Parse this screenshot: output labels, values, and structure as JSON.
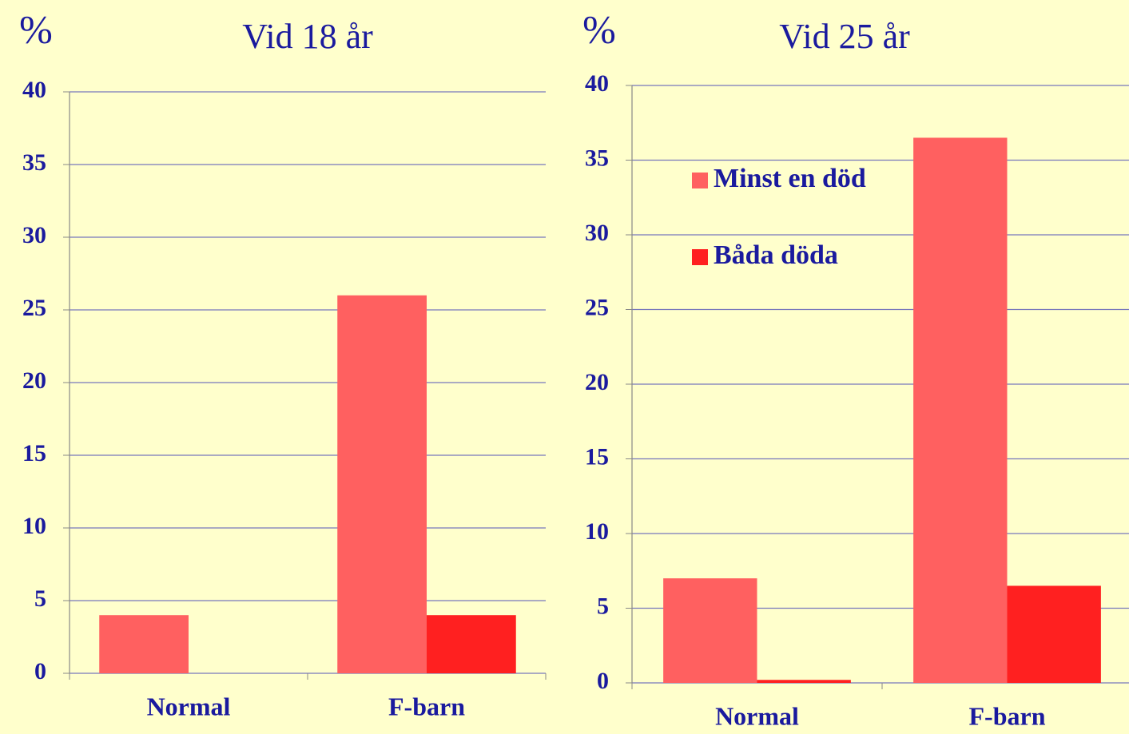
{
  "chart_data": [
    {
      "type": "bar",
      "title": "Vid 18 år",
      "y_label": "%",
      "categories": [
        "Normal",
        "F-barn"
      ],
      "series": [
        {
          "color": "#ff6060",
          "values": [
            4,
            26
          ]
        },
        {
          "color": "#ff2020",
          "values": [
            0,
            4
          ]
        }
      ],
      "ylim": [
        0,
        40
      ],
      "yticks": [
        0,
        5,
        10,
        15,
        20,
        25,
        30,
        35,
        40
      ],
      "grid": true
    },
    {
      "type": "bar",
      "title": "Vid 25 år",
      "y_label": "%",
      "categories": [
        "Normal",
        "F-barn"
      ],
      "series": [
        {
          "name": "Minst en död",
          "color": "#ff6060",
          "values": [
            7,
            36.5
          ]
        },
        {
          "name": "Båda döda",
          "color": "#ff2020",
          "values": [
            0.2,
            6.5
          ]
        }
      ],
      "ylim": [
        0,
        40
      ],
      "yticks": [
        0,
        5,
        10,
        15,
        20,
        25,
        30,
        35,
        40
      ],
      "grid": true
    }
  ]
}
